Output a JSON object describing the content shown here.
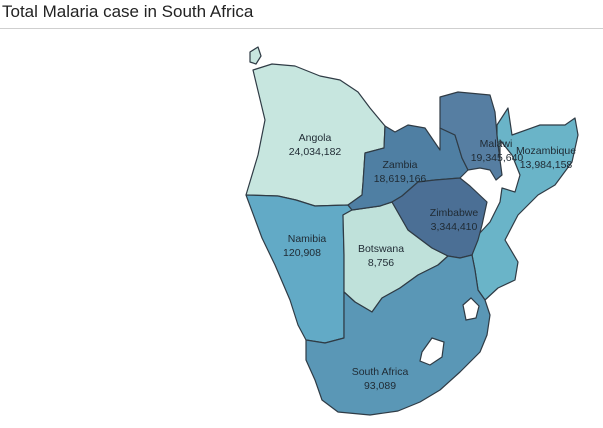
{
  "title": "Total Malaria case in South Africa",
  "colors": {
    "low": "#c5e5de",
    "mid": "#5aa6c0",
    "high": "#4f7899"
  },
  "countries": [
    {
      "key": "angola",
      "name": "Angola",
      "value": "24,034,182",
      "color": "#c7e6df"
    },
    {
      "key": "zambia",
      "name": "Zambia",
      "value": "18,619,166",
      "color": "#4f7fa3"
    },
    {
      "key": "malawi",
      "name": "Malawi",
      "value": "19,345,640",
      "color": "#567ea2"
    },
    {
      "key": "mozambique",
      "name": "Mozambique",
      "value": "13,984,158",
      "color": "#6ab4c8"
    },
    {
      "key": "zimbabwe",
      "name": "Zimbabwe",
      "value": "3,344,410",
      "color": "#4b6f95"
    },
    {
      "key": "namibia",
      "name": "Namibia",
      "value": "120,908",
      "color": "#62aac6"
    },
    {
      "key": "botswana",
      "name": "Botswana",
      "value": "8,756",
      "color": "#bfe1da"
    },
    {
      "key": "south_africa",
      "name": "South Africa",
      "value": "93,089",
      "color": "#5a97b6"
    }
  ]
}
